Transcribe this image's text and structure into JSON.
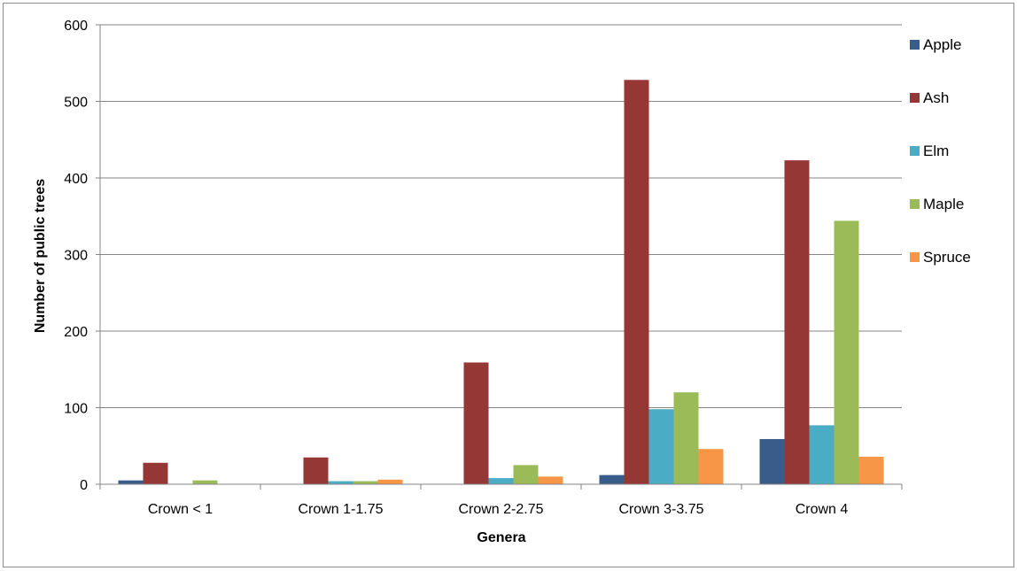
{
  "chart_data": {
    "type": "bar",
    "title": "",
    "xlabel": "Genera",
    "ylabel": "Number of public trees",
    "categories": [
      "Crown < 1",
      "Crown 1-1.75",
      "Crown 2-2.75",
      "Crown 3-3.75",
      "Crown 4"
    ],
    "ylim": [
      0,
      600
    ],
    "yticks": [
      0,
      100,
      200,
      300,
      400,
      500,
      600
    ],
    "grid": true,
    "legend_position": "right",
    "series": [
      {
        "name": "Apple",
        "color": "#385D8A",
        "values": [
          5,
          0,
          0,
          12,
          59
        ]
      },
      {
        "name": "Ash",
        "color": "#953735",
        "values": [
          28,
          35,
          159,
          528,
          423
        ]
      },
      {
        "name": "Elm",
        "color": "#4BACC6",
        "values": [
          0,
          4,
          8,
          98,
          77
        ]
      },
      {
        "name": "Maple",
        "color": "#9BBB59",
        "values": [
          5,
          4,
          25,
          120,
          344
        ]
      },
      {
        "name": "Spruce",
        "color": "#F79646",
        "values": [
          0,
          6,
          10,
          46,
          36
        ]
      }
    ]
  }
}
